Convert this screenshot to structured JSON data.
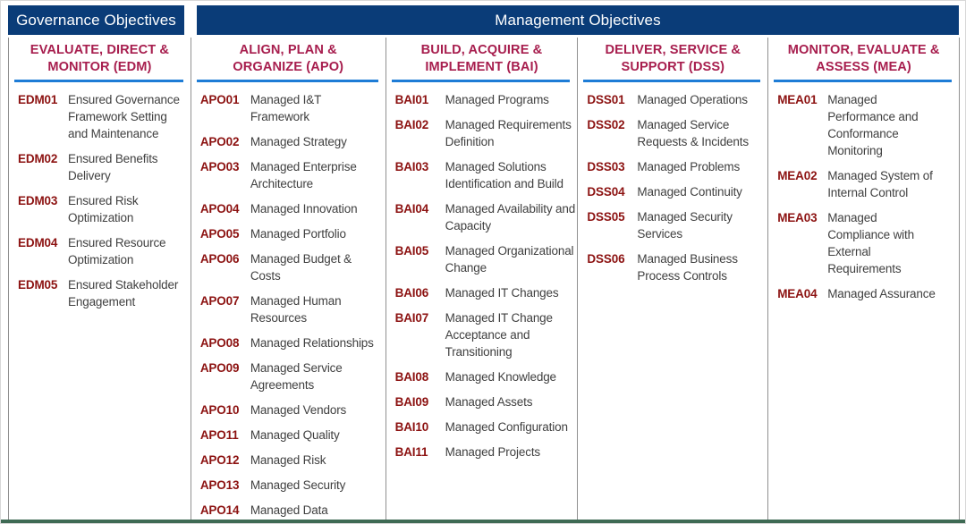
{
  "banner": {
    "governance_label": "Governance Objectives",
    "management_label": "Management Objectives"
  },
  "colors": {
    "banner_bg": "#0a3c78",
    "banner_text": "#ffffff",
    "column_title": "#a71e4e",
    "title_underline": "#1e7cd6",
    "objective_code": "#8c1211",
    "objective_text": "#3f3f3f",
    "column_divider": "#909090",
    "bottom_accent": "#3e6a54"
  },
  "columns": [
    {
      "id": "EDM",
      "title_lines": [
        "EVALUATE, DIRECT &",
        "MONITOR (EDM)"
      ],
      "items": [
        {
          "code": "EDM01",
          "label": "Ensured Governance Framework Setting and Maintenance"
        },
        {
          "code": "EDM02",
          "label": "Ensured Benefits Delivery"
        },
        {
          "code": "EDM03",
          "label": "Ensured Risk Optimization"
        },
        {
          "code": "EDM04",
          "label": "Ensured Resource Optimization"
        },
        {
          "code": "EDM05",
          "label": "Ensured Stakeholder Engagement"
        }
      ]
    },
    {
      "id": "APO",
      "title_lines": [
        "ALIGN, PLAN &",
        "ORGANIZE (APO)"
      ],
      "items": [
        {
          "code": "APO01",
          "label": "Managed I&T Framework"
        },
        {
          "code": "APO02",
          "label": "Managed Strategy"
        },
        {
          "code": "APO03",
          "label": "Managed Enterprise Architecture"
        },
        {
          "code": "APO04",
          "label": "Managed Innovation"
        },
        {
          "code": "APO05",
          "label": "Managed Portfolio"
        },
        {
          "code": "APO06",
          "label": "Managed Budget & Costs"
        },
        {
          "code": "APO07",
          "label": "Managed Human Resources"
        },
        {
          "code": "APO08",
          "label": "Managed Relationships"
        },
        {
          "code": "APO09",
          "label": "Managed Service Agreements"
        },
        {
          "code": "APO10",
          "label": "Managed Vendors"
        },
        {
          "code": "APO11",
          "label": "Managed Quality"
        },
        {
          "code": "APO12",
          "label": "Managed Risk"
        },
        {
          "code": "APO13",
          "label": "Managed Security"
        },
        {
          "code": "APO14",
          "label": "Managed Data"
        }
      ]
    },
    {
      "id": "BAI",
      "title_lines": [
        "BUILD, ACQUIRE &",
        "IMPLEMENT (BAI)"
      ],
      "items": [
        {
          "code": "BAI01",
          "label": "Managed Programs"
        },
        {
          "code": "BAI02",
          "label": "Managed Requirements Definition"
        },
        {
          "code": "BAI03",
          "label": "Managed Solutions Identification and Build"
        },
        {
          "code": "BAI04",
          "label": "Managed Availability and Capacity"
        },
        {
          "code": "BAI05",
          "label": "Managed Organizational Change"
        },
        {
          "code": "BAI06",
          "label": "Managed IT Changes"
        },
        {
          "code": "BAI07",
          "label": "Managed IT Change Acceptance and Transitioning"
        },
        {
          "code": "BAI08",
          "label": "Managed Knowledge"
        },
        {
          "code": "BAI09",
          "label": "Managed Assets"
        },
        {
          "code": "BAI10",
          "label": "Managed Configuration"
        },
        {
          "code": "BAI11",
          "label": "Managed Projects"
        }
      ]
    },
    {
      "id": "DSS",
      "title_lines": [
        "DELIVER, SERVICE &",
        "SUPPORT (DSS)"
      ],
      "items": [
        {
          "code": "DSS01",
          "label": "Managed Operations"
        },
        {
          "code": "DSS02",
          "label": "Managed Service Requests & Incidents"
        },
        {
          "code": "DSS03",
          "label": "Managed Problems"
        },
        {
          "code": "DSS04",
          "label": "Managed Continuity"
        },
        {
          "code": "DSS05",
          "label": "Managed Security Services"
        },
        {
          "code": "DSS06",
          "label": "Managed Business Process Controls"
        }
      ]
    },
    {
      "id": "MEA",
      "title_lines": [
        "MONITOR, EVALUATE &",
        "ASSESS (MEA)"
      ],
      "items": [
        {
          "code": "MEA01",
          "label": "Managed Performance and Conformance Monitoring"
        },
        {
          "code": "MEA02",
          "label": "Managed System of Internal Control"
        },
        {
          "code": "MEA03",
          "label": "Managed Compliance with External Requirements"
        },
        {
          "code": "MEA04",
          "label": "Managed Assurance"
        }
      ]
    }
  ]
}
